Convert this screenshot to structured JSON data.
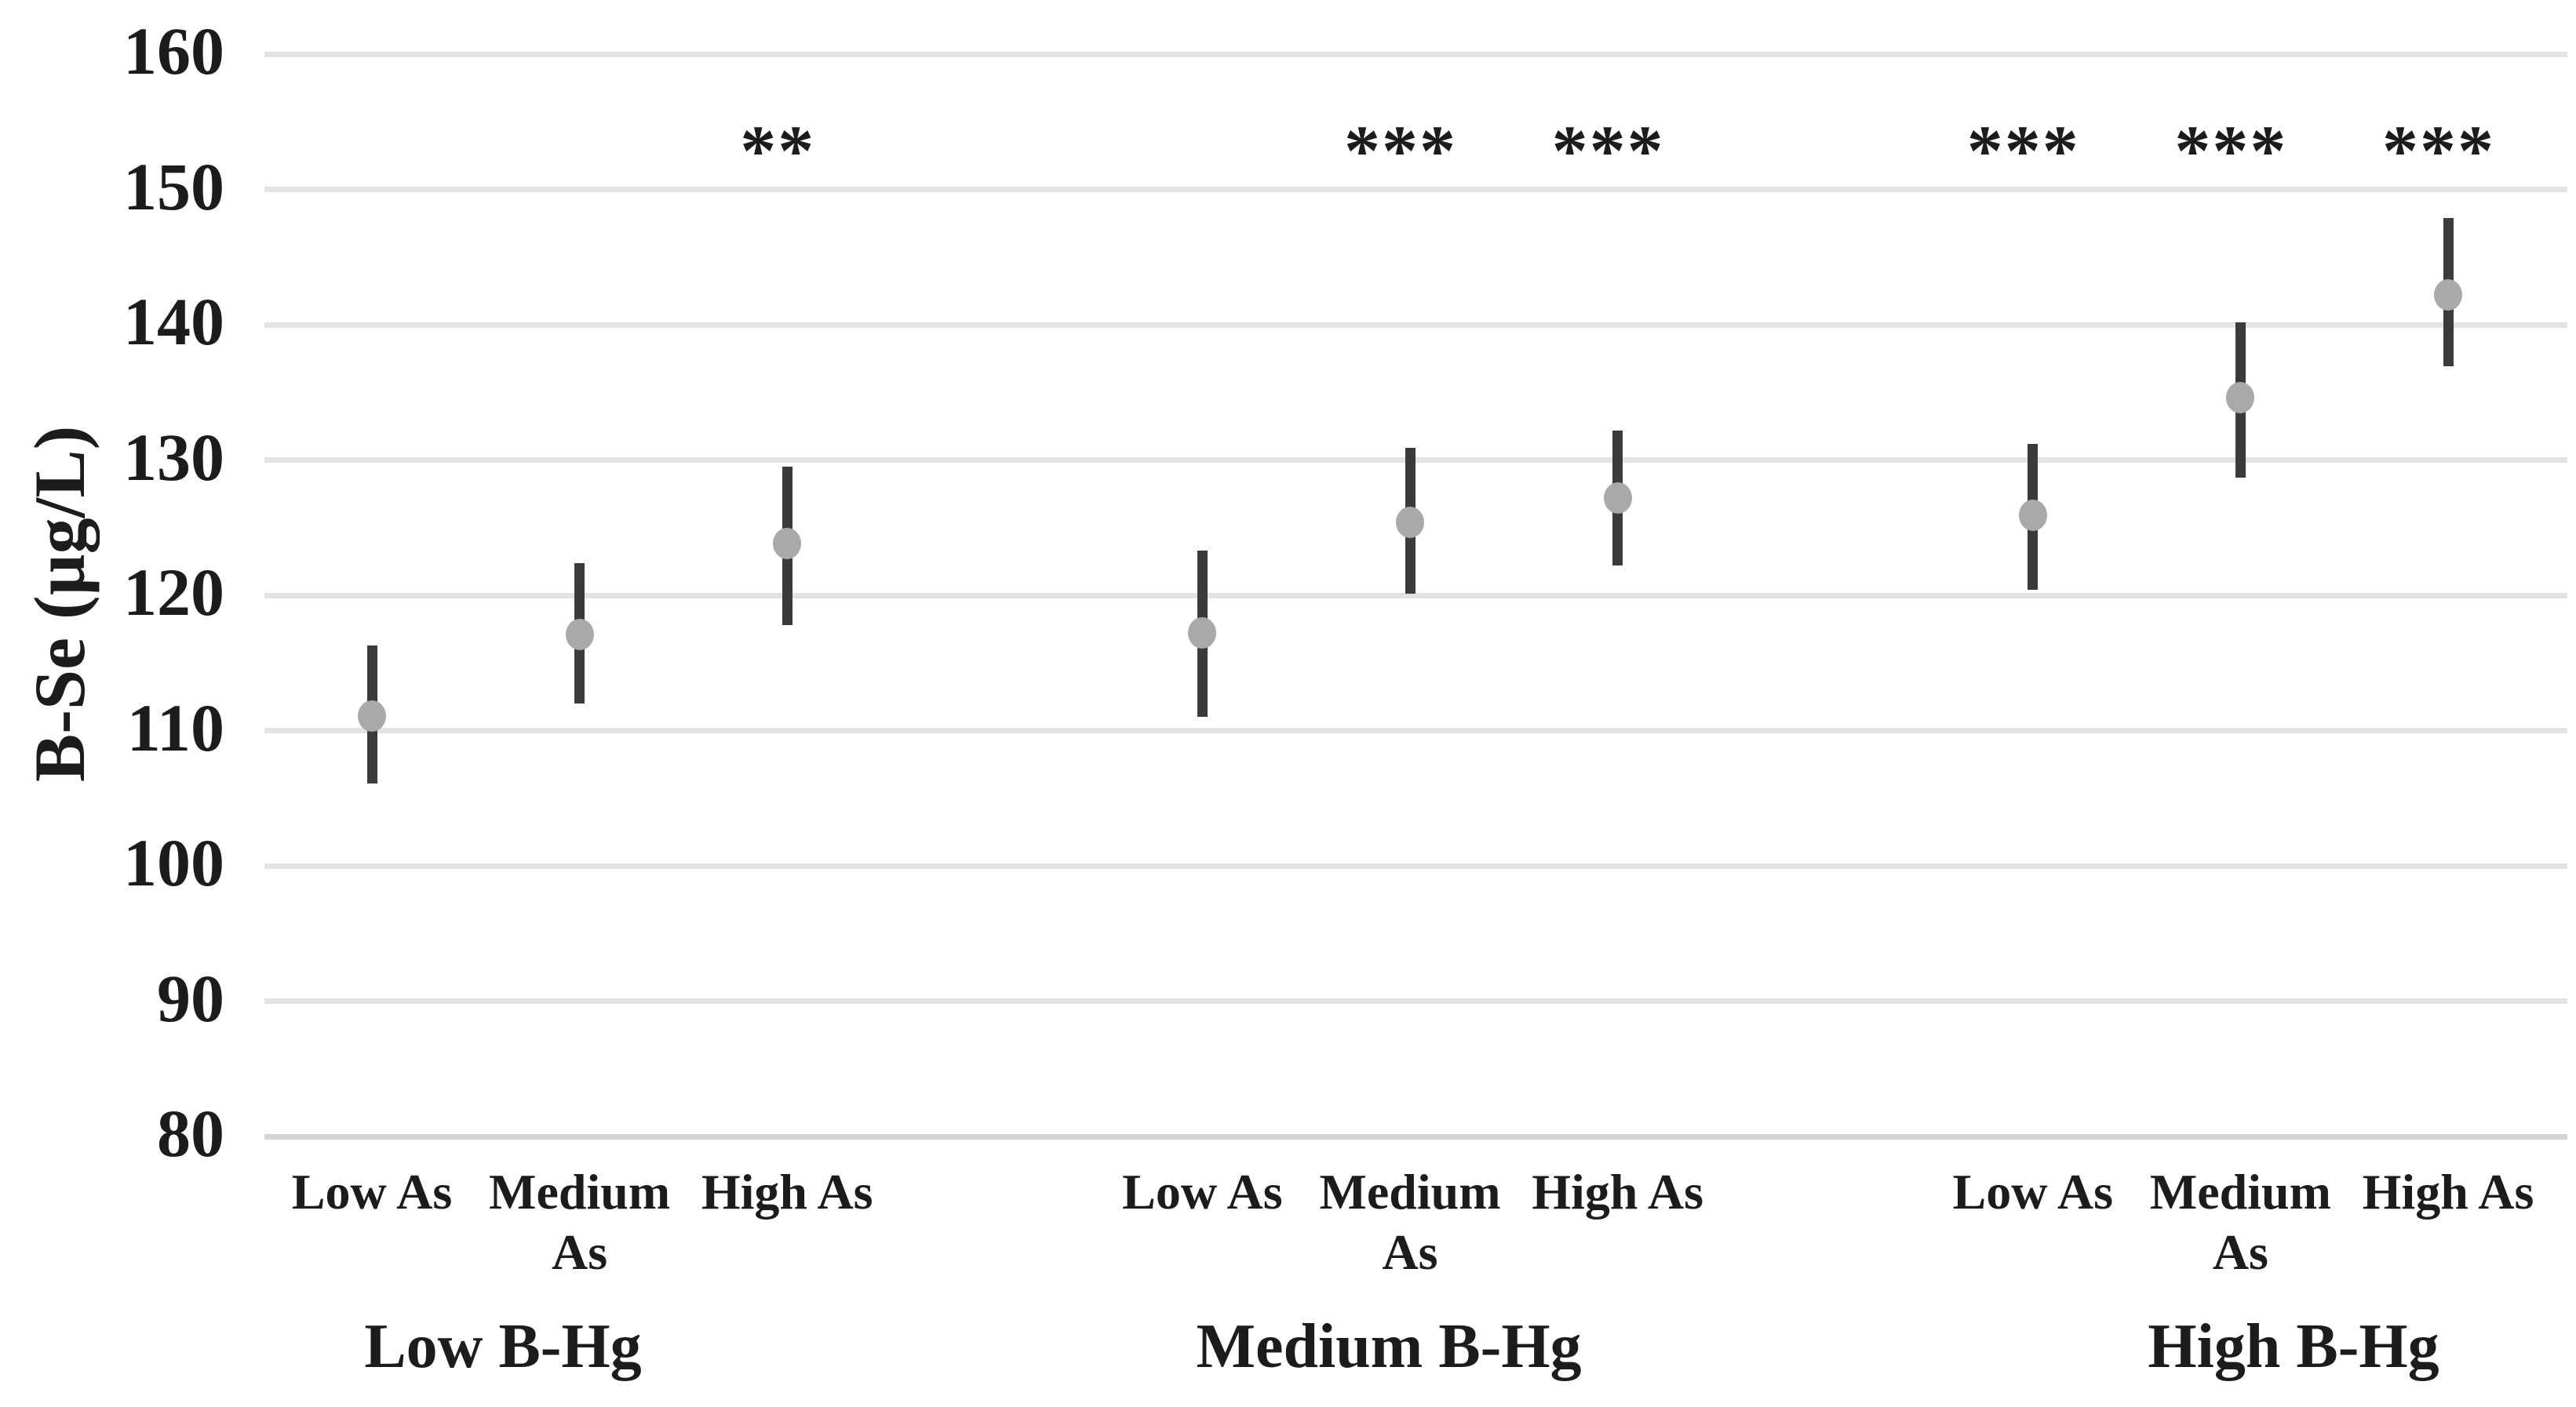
{
  "chart_data": {
    "type": "scatter",
    "title": "",
    "xlabel": "",
    "ylabel": "B-Se (µg/L)",
    "ylim": [
      80,
      160
    ],
    "yticks": [
      160,
      150,
      140,
      130,
      120,
      110,
      100,
      90,
      80
    ],
    "grid": true,
    "legend": false,
    "marker_style": "circle-with-vertical-error-bar",
    "significance_key": [
      "**",
      "***"
    ],
    "groups": [
      {
        "label": "Low B-Hg",
        "points": [
          {
            "label": "Low As",
            "mean": 111.1,
            "ci_low": 106.1,
            "ci_high": 116.3,
            "sig": ""
          },
          {
            "label": "Medium As",
            "mean": 117.1,
            "ci_low": 112.0,
            "ci_high": 122.4,
            "sig": ""
          },
          {
            "label": "High As",
            "mean": 123.8,
            "ci_low": 117.8,
            "ci_high": 129.5,
            "sig": "**"
          }
        ]
      },
      {
        "label": "Medium B-Hg",
        "points": [
          {
            "label": "Low As",
            "mean": 117.2,
            "ci_low": 111.0,
            "ci_high": 123.3,
            "sig": ""
          },
          {
            "label": "Medium As",
            "mean": 125.4,
            "ci_low": 120.1,
            "ci_high": 130.9,
            "sig": "***"
          },
          {
            "label": "High As",
            "mean": 127.2,
            "ci_low": 122.2,
            "ci_high": 132.2,
            "sig": "***"
          }
        ]
      },
      {
        "label": "High B-Hg",
        "points": [
          {
            "label": "Low As",
            "mean": 125.9,
            "ci_low": 120.4,
            "ci_high": 131.2,
            "sig": "***"
          },
          {
            "label": "Medium As",
            "mean": 134.6,
            "ci_low": 128.7,
            "ci_high": 140.2,
            "sig": "***"
          },
          {
            "label": "High As",
            "mean": 142.2,
            "ci_low": 136.9,
            "ci_high": 147.9,
            "sig": "***"
          }
        ]
      }
    ],
    "colors": {
      "marker": "#a9a9a9",
      "error_bar": "#3b3b3b",
      "gridline": "#e3e3e3",
      "axis_line": "#d5d5d5",
      "text": "#1c1c1c",
      "background": "#ffffff"
    }
  }
}
